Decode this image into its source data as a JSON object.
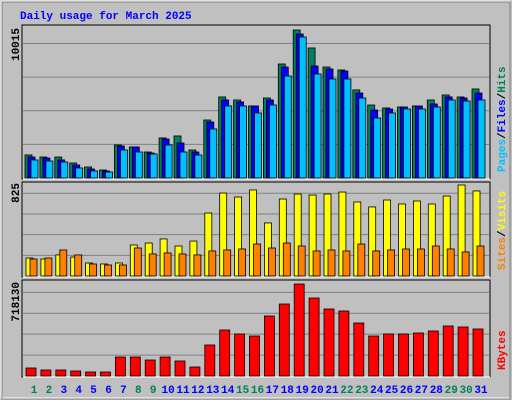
{
  "chart_data": [
    {
      "type": "bar",
      "title": "Daily usage for March 2025",
      "legend_separator": "/",
      "ylim": [
        0,
        10015
      ],
      "yticks": [
        10015
      ],
      "series": [
        {
          "name": "Hits",
          "color": "#00805c",
          "values": [
            1560,
            1420,
            1420,
            1015,
            745,
            540,
            2235,
            2100,
            1760,
            2710,
            2845,
            1895,
            3925,
            5485,
            5280,
            4875,
            5415,
            7715,
            10015,
            8800,
            7510,
            7310,
            5960,
            4940,
            4740,
            4805,
            4875,
            5280,
            5620,
            5485,
            6025
          ]
        },
        {
          "name": "Files",
          "color": "#0000ff",
          "values": [
            1420,
            1350,
            1220,
            880,
            610,
            475,
            2165,
            2100,
            1690,
            2640,
            2370,
            1760,
            3790,
            5280,
            5145,
            4875,
            5280,
            7510,
            9745,
            7580,
            7375,
            7240,
            5750,
            4600,
            4670,
            4805,
            4875,
            5010,
            5485,
            5415,
            5750
          ]
        },
        {
          "name": "Pages",
          "color": "#00c0ff",
          "values": [
            1220,
            1150,
            1080,
            680,
            475,
            405,
            1895,
            1760,
            1625,
            2235,
            1760,
            1555,
            3320,
            4875,
            4875,
            4400,
            4940,
            6900,
            9540,
            7040,
            6700,
            6700,
            5415,
            4060,
            4400,
            4670,
            4670,
            4805,
            5280,
            5210,
            5280
          ]
        }
      ]
    },
    {
      "type": "bar",
      "legend_separator": "/",
      "ylim": [
        0,
        825
      ],
      "yticks": [
        825
      ],
      "series": [
        {
          "name": "Visits",
          "color": "#ffff00",
          "values": [
            163,
            154,
            191,
            172,
            118,
            109,
            118,
            281,
            299,
            336,
            272,
            317,
            571,
            752,
            716,
            780,
            481,
            698,
            743,
            734,
            743,
            761,
            671,
            626,
            689,
            653,
            680,
            653,
            725,
            825,
            771
          ]
        },
        {
          "name": "Sites",
          "color": "#ff8000",
          "values": [
            154,
            163,
            236,
            191,
            109,
            100,
            100,
            254,
            200,
            209,
            200,
            191,
            227,
            236,
            245,
            290,
            254,
            299,
            272,
            227,
            236,
            227,
            290,
            227,
            236,
            245,
            245,
            272,
            245,
            218,
            272
          ]
        }
      ]
    },
    {
      "type": "bar",
      "ylim": [
        0,
        718130
      ],
      "yticks": [
        718130
      ],
      "categories": [
        "1",
        "2",
        "3",
        "4",
        "5",
        "6",
        "7",
        "8",
        "9",
        "10",
        "11",
        "12",
        "13",
        "14",
        "15",
        "16",
        "17",
        "18",
        "19",
        "20",
        "21",
        "22",
        "23",
        "24",
        "25",
        "26",
        "27",
        "28",
        "29",
        "30",
        "31"
      ],
      "category_colors": [
        "#00805c",
        "#00805c",
        "#0000ff",
        "#0000ff",
        "#0000ff",
        "#0000ff",
        "#0000ff",
        "#00805c",
        "#00805c",
        "#0000ff",
        "#0000ff",
        "#0000ff",
        "#0000ff",
        "#0000ff",
        "#00805c",
        "#00805c",
        "#0000ff",
        "#0000ff",
        "#0000ff",
        "#0000ff",
        "#0000ff",
        "#00805c",
        "#00805c",
        "#0000ff",
        "#0000ff",
        "#0000ff",
        "#0000ff",
        "#0000ff",
        "#00805c",
        "#00805c",
        "#0000ff"
      ],
      "series": [
        {
          "name": "KBytes",
          "color": "#ff0000",
          "values": [
            62450,
            46850,
            46850,
            39000,
            31200,
            31200,
            148300,
            148300,
            124900,
            148300,
            117100,
            70250,
            242000,
            359000,
            327900,
            312200,
            468400,
            562000,
            718130,
            608900,
            523000,
            507400,
            413700,
            312200,
            327900,
            327900,
            335700,
            351300,
            390300,
            382500,
            366900
          ]
        }
      ]
    }
  ]
}
